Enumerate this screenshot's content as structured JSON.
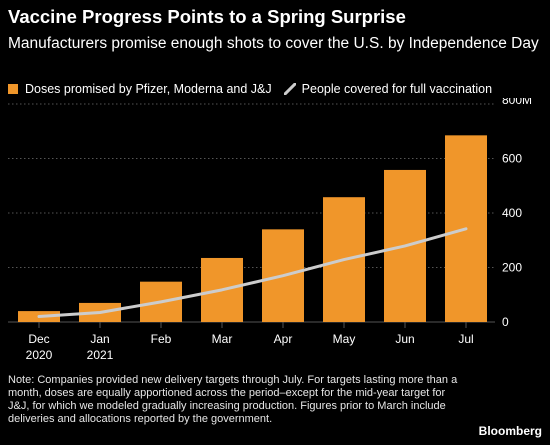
{
  "title": "Vaccine Progress Points to a Spring Surprise",
  "subtitle": "Manufacturers promise enough shots to cover the U.S. by Independence Day",
  "colors": {
    "bars": "#f0962a",
    "line": "#cccccc",
    "grid": "#555555",
    "text": "#ffffff"
  },
  "chart_data": {
    "type": "bar",
    "categories": [
      [
        "Dec",
        "2020"
      ],
      [
        "Jan",
        "2021"
      ],
      [
        "Feb"
      ],
      [
        "Mar"
      ],
      [
        "Apr"
      ],
      [
        "May"
      ],
      [
        "Jun"
      ],
      [
        "Jul"
      ]
    ],
    "series": [
      {
        "name": "Doses promised by Pfizer, Moderna and J&J",
        "type": "bar",
        "values": [
          40,
          70,
          148,
          235,
          340,
          458,
          558,
          685
        ]
      },
      {
        "name": "People covered for full vaccination",
        "type": "line",
        "values": [
          20,
          35,
          74,
          118,
          170,
          229,
          279,
          342
        ]
      }
    ],
    "ylim": [
      0,
      800
    ],
    "yticks": [
      0,
      200,
      400,
      600,
      800
    ],
    "ytick_labels": [
      "0",
      "200",
      "400",
      "600",
      "800M"
    ],
    "ylabel": "",
    "xlabel": "",
    "grid": true,
    "legend": "top-left"
  },
  "note": "Note: Companies provided new delivery targets through July. For targets lasting more than a month, doses are equally apportioned across the period–except for the mid-year target for J&J, for which we modeled gradually increasing production. Figures prior to March include deliveries and allocations reported by the government.",
  "source_brand": "Bloomberg"
}
